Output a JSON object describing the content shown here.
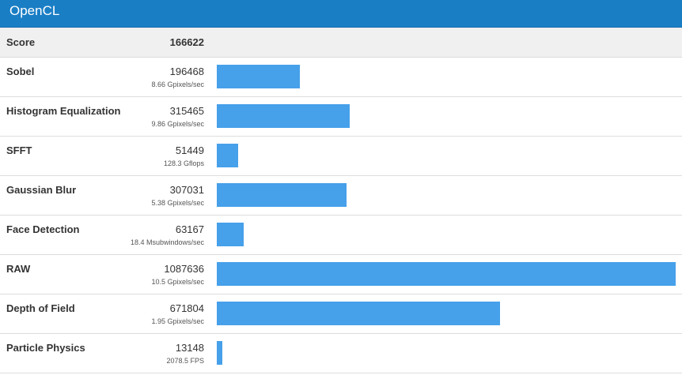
{
  "header": {
    "title": "OpenCL"
  },
  "score": {
    "label": "Score",
    "value": "166622"
  },
  "max_score": 1087636,
  "bar_color": "#46a0ea",
  "rows": [
    {
      "name": "Sobel",
      "score": "196468",
      "unit": "8.66 Gpixels/sec",
      "value": 196468
    },
    {
      "name": "Histogram Equalization",
      "score": "315465",
      "unit": "9.86 Gpixels/sec",
      "value": 315465
    },
    {
      "name": "SFFT",
      "score": "51449",
      "unit": "128.3 Gflops",
      "value": 51449
    },
    {
      "name": "Gaussian Blur",
      "score": "307031",
      "unit": "5.38 Gpixels/sec",
      "value": 307031
    },
    {
      "name": "Face Detection",
      "score": "63167",
      "unit": "18.4 Msubwindows/sec",
      "value": 63167
    },
    {
      "name": "RAW",
      "score": "1087636",
      "unit": "10.5 Gpixels/sec",
      "value": 1087636
    },
    {
      "name": "Depth of Field",
      "score": "671804",
      "unit": "1.95 Gpixels/sec",
      "value": 671804
    },
    {
      "name": "Particle Physics",
      "score": "13148",
      "unit": "2078.5 FPS",
      "value": 13148
    }
  ]
}
